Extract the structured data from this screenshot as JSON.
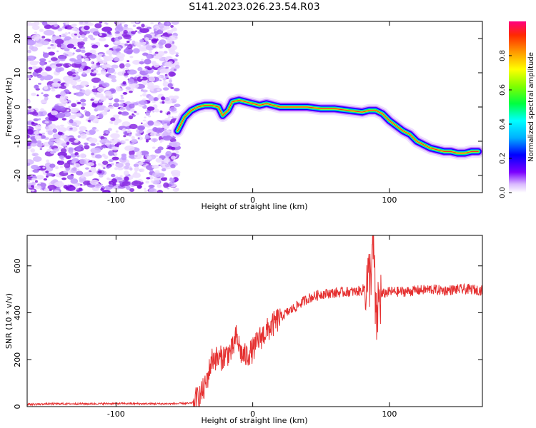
{
  "figure_title": "S141.2023.026.23.54.R03",
  "colors": {
    "spectrogram_noise": "#8a2be2",
    "snr_line": "#e53030",
    "axis": "#000000"
  },
  "chart_data": [
    {
      "type": "heatmap",
      "title": "",
      "xlabel": "Height of straight line (km)",
      "ylabel": "Frequency (Hz)",
      "xlim": [
        -165,
        168
      ],
      "ylim": [
        -25,
        25
      ],
      "x_ticks": [
        "-100",
        "0",
        "100"
      ],
      "y_ticks": [
        "-20",
        "-10",
        "0",
        "10",
        "20"
      ],
      "colorbar": {
        "label": "Normalized spectral amplitude",
        "range": [
          0.0,
          1.0
        ],
        "ticks": [
          "0.0",
          "0.2",
          "0.4",
          "0.6",
          "0.8"
        ]
      },
      "noise_region_x": [
        -165,
        -55
      ],
      "doppler_trace": {
        "x": [
          -55,
          -50,
          -45,
          -40,
          -35,
          -30,
          -25,
          -22,
          -18,
          -15,
          -10,
          -5,
          0,
          5,
          10,
          20,
          30,
          40,
          50,
          60,
          70,
          80,
          85,
          90,
          95,
          100,
          105,
          110,
          115,
          120,
          125,
          130,
          135,
          140,
          145,
          150,
          155,
          160,
          165
        ],
        "y": [
          -7,
          -3,
          -1,
          0,
          0.5,
          0.5,
          0,
          -2.5,
          -1,
          1.5,
          2,
          1.5,
          1,
          0.5,
          1,
          0,
          0,
          0,
          -0.5,
          -0.5,
          -1,
          -1.5,
          -1,
          -1,
          -2,
          -4,
          -5.5,
          -7,
          -8,
          -10,
          -11,
          -12,
          -12.5,
          -13,
          -13,
          -13.5,
          -13.5,
          -13,
          -13
        ]
      }
    },
    {
      "type": "line",
      "title": "",
      "xlabel": "Height of straight line (km)",
      "ylabel": "SNR (10 * v/v)",
      "xlim": [
        -165,
        168
      ],
      "ylim": [
        0,
        730
      ],
      "x_ticks": [
        "-100",
        "0",
        "100"
      ],
      "y_ticks": [
        "0",
        "200",
        "400",
        "600"
      ],
      "series": [
        {
          "x": [
            -165,
            -140,
            -120,
            -100,
            -80,
            -60,
            -45,
            -40,
            -35,
            -32,
            -30,
            -28,
            -25,
            -20,
            -15,
            -12,
            -10,
            -8,
            -5,
            0,
            5,
            10,
            15,
            20,
            25,
            30,
            40,
            50,
            60,
            70,
            75,
            80,
            83,
            86,
            88,
            89,
            90,
            92,
            95,
            100,
            110,
            120,
            130,
            140,
            150,
            160,
            168
          ],
          "y": [
            10,
            12,
            12,
            13,
            12,
            12,
            14,
            35,
            80,
            150,
            200,
            210,
            200,
            220,
            240,
            300,
            260,
            220,
            215,
            240,
            290,
            320,
            350,
            380,
            400,
            420,
            460,
            480,
            485,
            490,
            490,
            495,
            520,
            560,
            680,
            600,
            330,
            450,
            480,
            490,
            490,
            495,
            500,
            495,
            500,
            500,
            495
          ]
        }
      ]
    }
  ]
}
